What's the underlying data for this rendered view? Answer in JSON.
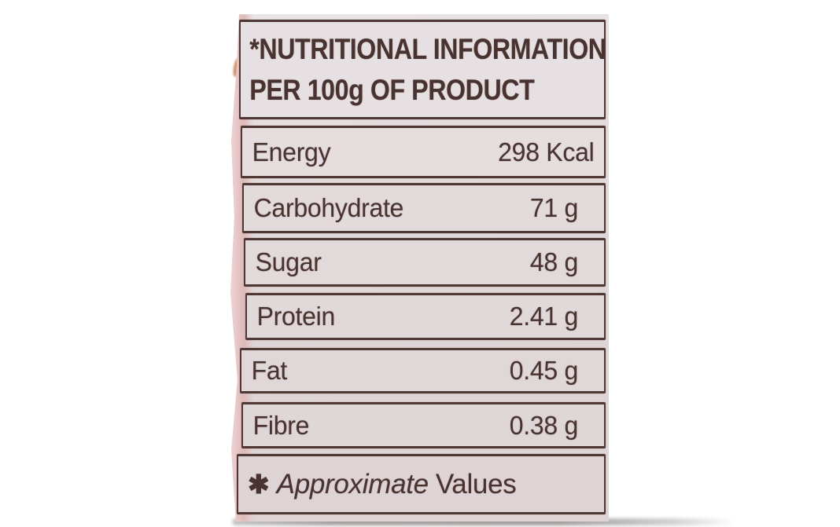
{
  "label": {
    "header": {
      "line1": "*NUTRITIONAL INFORMATION",
      "line2": "PER 100g OF PRODUCT"
    },
    "rows": [
      {
        "name": "Energy",
        "value": "298 Kcal"
      },
      {
        "name": "Carbohydrate",
        "value": "71 g"
      },
      {
        "name": "Sugar",
        "value": "48 g"
      },
      {
        "name": "Protein",
        "value": "2.41 g"
      },
      {
        "name": "Fat",
        "value": "0.45 g"
      },
      {
        "name": "Fibre",
        "value": "0.38 g"
      }
    ],
    "footnote": {
      "asterisk": "✱",
      "italic_word": "Approximate",
      "regular_word": "Values"
    }
  },
  "colors": {
    "page_bg": "#ffffff",
    "label_bg": "#e2dadb",
    "ink": "#493331",
    "border": "#4f3833",
    "package_pink": "#e7c4c4",
    "shadow_gray": "#8e8a88",
    "speck_orange": "#c9854e"
  }
}
